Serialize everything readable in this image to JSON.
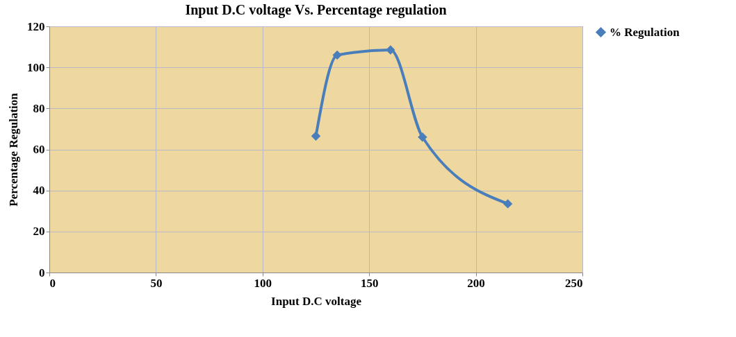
{
  "chart_data": {
    "type": "line",
    "title": "Input D.C voltage Vs. Percentage regulation",
    "xlabel": "Input  D.C voltage",
    "ylabel": "Percentage Regulation",
    "x": [
      125,
      135,
      160,
      175,
      215
    ],
    "series": [
      {
        "name": "% Regulation",
        "color": "#4a7ebb",
        "values": [
          66.5,
          106,
          108.5,
          66,
          33.5
        ]
      }
    ],
    "xlim": [
      0,
      250
    ],
    "xticks": [
      0,
      50,
      100,
      150,
      200,
      250
    ],
    "ylim": [
      0,
      120
    ],
    "yticks": [
      0,
      20,
      40,
      60,
      80,
      100,
      120
    ],
    "grid": true,
    "legend": "right",
    "marker": "diamond",
    "line_style": "solid"
  }
}
